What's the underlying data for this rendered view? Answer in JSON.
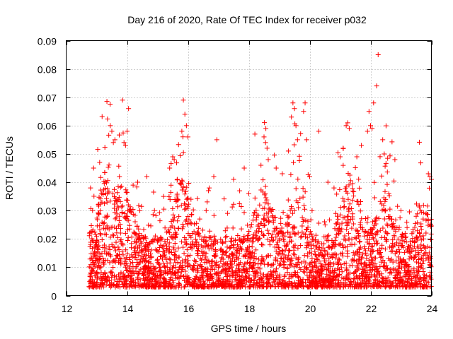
{
  "chart_data": {
    "type": "scatter",
    "title": "Day 216 of 2020, Rate Of TEC Index for receiver p032",
    "xlabel": "GPS time / hours",
    "ylabel": "ROTI / TECUs",
    "xlim": [
      12,
      24
    ],
    "ylim": [
      0,
      0.09
    ],
    "x_ticks": [
      "12",
      "14",
      "16",
      "18",
      "20",
      "22",
      "24"
    ],
    "y_ticks": [
      "0",
      "0.01",
      "0.02",
      "0.03",
      "0.04",
      "0.05",
      "0.06",
      "0.07",
      "0.08",
      "0.09"
    ],
    "x_tick_values": [
      12,
      14,
      16,
      18,
      20,
      22,
      24
    ],
    "y_tick_values": [
      0,
      0.01,
      0.02,
      0.03,
      0.04,
      0.05,
      0.06,
      0.07,
      0.08,
      0.09
    ],
    "grid": true,
    "marker": "+",
    "series_color": "#ff0000",
    "series": [
      {
        "name": "ROTI",
        "points": [
          [
            12.8,
            0.038
          ],
          [
            12.9,
            0.045
          ],
          [
            13.1,
            0.047
          ],
          [
            13.3,
            0.036
          ],
          [
            13.45,
            0.06
          ],
          [
            13.5,
            0.058
          ],
          [
            13.55,
            0.054
          ],
          [
            13.6,
            0.055
          ],
          [
            13.75,
            0.042
          ],
          [
            13.85,
            0.069
          ],
          [
            13.9,
            0.054
          ],
          [
            13.95,
            0.053
          ],
          [
            14.0,
            0.058
          ],
          [
            14.05,
            0.066
          ],
          [
            14.2,
            0.039
          ],
          [
            14.35,
            0.04
          ],
          [
            14.65,
            0.042
          ],
          [
            14.9,
            0.03
          ],
          [
            15.2,
            0.035
          ],
          [
            15.4,
            0.045
          ],
          [
            15.5,
            0.049
          ],
          [
            15.55,
            0.048
          ],
          [
            15.65,
            0.041
          ],
          [
            15.8,
            0.058
          ],
          [
            15.85,
            0.069
          ],
          [
            15.9,
            0.064
          ],
          [
            15.95,
            0.06
          ],
          [
            16.0,
            0.056
          ],
          [
            16.1,
            0.034
          ],
          [
            16.6,
            0.03
          ],
          [
            16.7,
            0.038
          ],
          [
            16.85,
            0.042
          ],
          [
            16.95,
            0.055
          ],
          [
            17.3,
            0.029
          ],
          [
            17.5,
            0.041
          ],
          [
            17.7,
            0.037
          ],
          [
            17.85,
            0.045
          ],
          [
            18.0,
            0.036
          ],
          [
            18.2,
            0.057
          ],
          [
            18.4,
            0.046
          ],
          [
            18.5,
            0.056
          ],
          [
            18.55,
            0.054
          ],
          [
            18.6,
            0.052
          ],
          [
            18.9,
            0.045
          ],
          [
            19.1,
            0.043
          ],
          [
            19.3,
            0.051
          ],
          [
            19.4,
            0.063
          ],
          [
            19.45,
            0.068
          ],
          [
            19.5,
            0.066
          ],
          [
            19.55,
            0.06
          ],
          [
            19.6,
            0.055
          ],
          [
            19.8,
            0.065
          ],
          [
            19.85,
            0.068
          ],
          [
            19.9,
            0.055
          ],
          [
            20.0,
            0.042
          ],
          [
            20.3,
            0.058
          ],
          [
            20.6,
            0.04
          ],
          [
            20.8,
            0.038
          ],
          [
            21.0,
            0.049
          ],
          [
            21.1,
            0.052
          ],
          [
            21.2,
            0.06
          ],
          [
            21.25,
            0.061
          ],
          [
            21.3,
            0.059
          ],
          [
            21.55,
            0.049
          ],
          [
            21.7,
            0.053
          ],
          [
            21.9,
            0.058
          ],
          [
            21.95,
            0.065
          ],
          [
            22.0,
            0.06
          ],
          [
            22.05,
            0.059
          ],
          [
            22.1,
            0.068
          ],
          [
            22.2,
            0.074
          ],
          [
            22.25,
            0.085
          ],
          [
            22.4,
            0.055
          ],
          [
            22.45,
            0.05
          ],
          [
            22.6,
            0.036
          ],
          [
            22.8,
            0.048
          ],
          [
            23.0,
            0.03
          ],
          [
            23.2,
            0.024
          ],
          [
            23.5,
            0.028
          ],
          [
            23.9,
            0.043
          ],
          [
            23.95,
            0.042
          ],
          [
            24.0,
            0.041
          ]
        ]
      }
    ]
  }
}
